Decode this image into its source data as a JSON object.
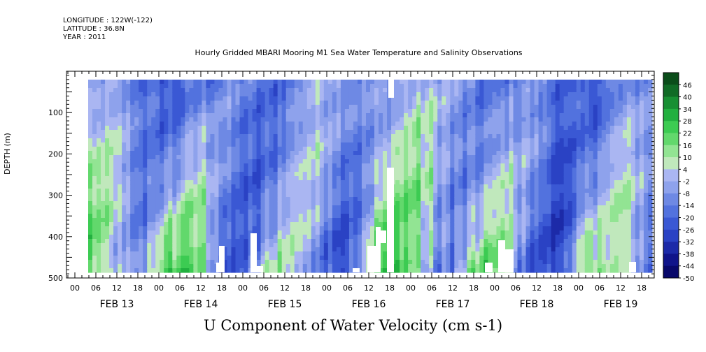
{
  "header": {
    "longitude": "LONGITUDE : 122W(-122)",
    "latitude": "LATITUDE : 36.8N",
    "year": "YEAR : 2011",
    "title": "Hourly Gridded MBARI Mooring M1 Sea Water Temperature and Salinity Observations"
  },
  "chart_data": {
    "type": "heatmap",
    "title": "Hourly Gridded MBARI Mooring M1 Sea Water Temperature and Salinity Observations",
    "xlabel": "",
    "ylabel": "DEPTH (m)",
    "colorbar_label": "U Component of Water Velocity (cm s-1)",
    "y_ticks": [
      100,
      200,
      300,
      400,
      500
    ],
    "y_range": [
      500,
      0
    ],
    "hour_tick_labels": [
      "00",
      "06",
      "12",
      "18",
      "00",
      "06",
      "12",
      "18",
      "00",
      "06",
      "12",
      "18",
      "00",
      "06",
      "12",
      "18",
      "00",
      "06",
      "12",
      "18",
      "00",
      "06",
      "12",
      "18",
      "00",
      "06",
      "12",
      "18"
    ],
    "day_labels": [
      "FEB 13",
      "FEB 14",
      "FEB 15",
      "FEB 16",
      "FEB 17",
      "FEB 18",
      "FEB 19"
    ],
    "colorbar_ticks": [
      "46",
      "40",
      "34",
      "28",
      "22",
      "16",
      "10",
      "4",
      "-2",
      "-8",
      "-14",
      "-20",
      "-26",
      "-32",
      "-38",
      "-44",
      "-50"
    ],
    "colorbar_range": [
      -50,
      52
    ],
    "colors": {
      "strong_positive": "#0b4d1a",
      "positive": "#2fbf4a",
      "weak_positive": "#9de89c",
      "weak_negative": "#a9aef0",
      "negative": "#4a63d8",
      "strong_negative": "#0a0a7a",
      "missing": "#ffffff"
    }
  }
}
